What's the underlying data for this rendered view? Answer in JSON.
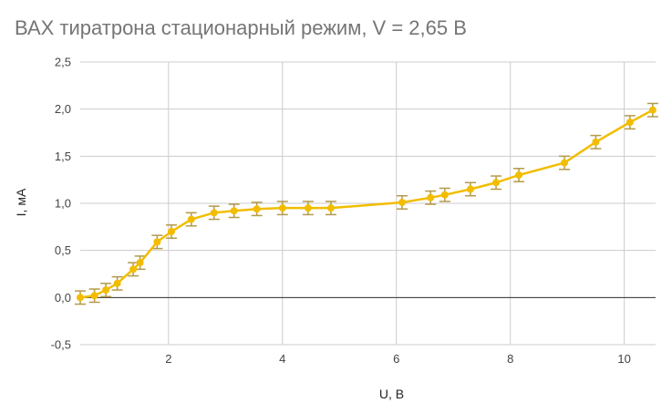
{
  "chart_data": {
    "type": "line",
    "title": "ВАХ тиратрона стационарный режим, V = 2,65 В",
    "xlabel": "U, В",
    "ylabel": "I, мА",
    "xlim": [
      0.45,
      10.55
    ],
    "ylim": [
      -0.5,
      2.5
    ],
    "x_ticks": [
      {
        "value": 2,
        "label": "2"
      },
      {
        "value": 4,
        "label": "4"
      },
      {
        "value": 6,
        "label": "6"
      },
      {
        "value": 8,
        "label": "8"
      },
      {
        "value": 10,
        "label": "10"
      }
    ],
    "y_ticks": [
      {
        "value": -0.5,
        "label": "-0,5"
      },
      {
        "value": 0.0,
        "label": "0,0"
      },
      {
        "value": 0.5,
        "label": "0,5"
      },
      {
        "value": 1.0,
        "label": "1,0"
      },
      {
        "value": 1.5,
        "label": "1,5"
      },
      {
        "value": 2.0,
        "label": "2,0"
      },
      {
        "value": 2.5,
        "label": "2,5"
      }
    ],
    "grid": true,
    "legend": "none",
    "line_color": "#f2bd00",
    "errorbar_color": "#b39a4a",
    "zero_line_color": "#333333",
    "error": 0.07,
    "series": [
      {
        "x": [
          0.45,
          0.7,
          0.9,
          1.1,
          1.38,
          1.5,
          1.8,
          2.05,
          2.4,
          2.8,
          3.15,
          3.55,
          4.0,
          4.45,
          4.85,
          6.1,
          6.6,
          6.85,
          7.3,
          7.75,
          8.15,
          8.95,
          9.5,
          10.1,
          10.5
        ],
        "y": [
          0.0,
          0.02,
          0.08,
          0.15,
          0.3,
          0.37,
          0.59,
          0.7,
          0.83,
          0.9,
          0.92,
          0.94,
          0.95,
          0.95,
          0.95,
          1.01,
          1.06,
          1.09,
          1.15,
          1.22,
          1.3,
          1.43,
          1.65,
          1.86,
          1.99
        ]
      }
    ]
  }
}
